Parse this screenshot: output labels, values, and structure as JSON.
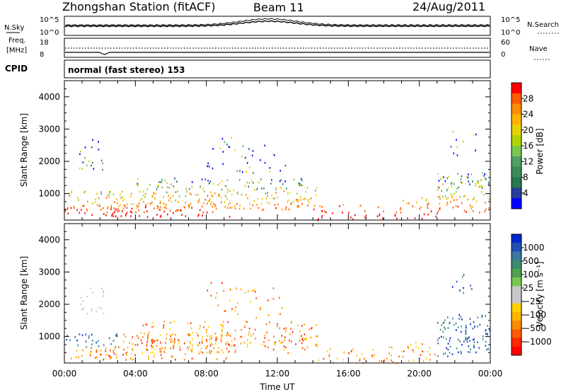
{
  "header": {
    "station": "Zhongshan Station (fitACF)",
    "beam": "Beam 11",
    "date": "24/Aug/2011"
  },
  "top_panels": {
    "nsky_label": "N.Sky",
    "nsky_ticks": [
      "10^5",
      "10^0"
    ],
    "nsearch_label": "N.Search",
    "nsearch_ticks": [
      "10^5",
      "10^0"
    ],
    "freq_label_1": "Freq.",
    "freq_label_2": "[MHz]",
    "freq_ticks": [
      "18",
      "8"
    ],
    "nave_label": "Nave",
    "nave_ticks": [
      "60",
      "0"
    ],
    "cpid_label": "CPID",
    "cpid_text": "normal (fast stereo) 153"
  },
  "chart_data": [
    {
      "type": "heatmap",
      "parameter": "power",
      "ylabel": "Slant Range [km]",
      "yticks": [
        "4000",
        "3000",
        "2000",
        "1000"
      ],
      "xticks": [
        "00:00",
        "04:00",
        "08:00",
        "12:00",
        "16:00",
        "20:00",
        "00:00"
      ],
      "colorbar": {
        "label": "Power [dB]",
        "tick_labels": [
          "28",
          "24",
          "20",
          "16",
          "12",
          "8",
          "4"
        ],
        "colors": [
          "#ff0000",
          "#ff5a00",
          "#ff8c00",
          "#ffb400",
          "#e6d200",
          "#b4d200",
          "#78c850",
          "#50a064",
          "#3c8c5a",
          "#287850",
          "#283ca0",
          "#0000ff"
        ]
      }
    },
    {
      "type": "heatmap",
      "parameter": "velocity",
      "ylabel": "Slant Range [km]",
      "yticks": [
        "4000",
        "3000",
        "2000",
        "1000"
      ],
      "xticks": [
        "00:00",
        "04:00",
        "08:00",
        "12:00",
        "16:00",
        "20:00",
        "00:00"
      ],
      "xlabel": "Time UT",
      "colorbar": {
        "label": "Velocity [m s⁻¹]",
        "tick_labels": [
          "1000",
          "500",
          "100",
          "25",
          "−25",
          "−100",
          "−500",
          "−1000"
        ],
        "colors": [
          "#0028c8",
          "#1e50b4",
          "#3c78a0",
          "#3c8c6e",
          "#50a050",
          "#78c850",
          "#c8c8c8",
          "#c8c8c8",
          "#ffd200",
          "#ffb400",
          "#ff8c00",
          "#ff5a00",
          "#ff2800",
          "#ff0000"
        ]
      }
    }
  ]
}
